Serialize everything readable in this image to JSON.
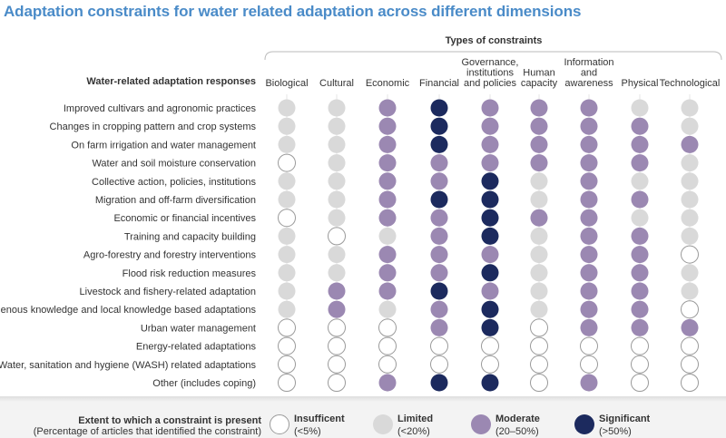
{
  "title": "Adaptation constraints for water related adaptation across different dimensions",
  "chart_data": {
    "type": "table",
    "column_group_label": "Types of constraints",
    "row_header": "Water-related adaptation responses",
    "columns": [
      "Biological",
      "Cultural",
      "Economic",
      "Financial",
      "Governance, institutions and policies",
      "Human capacity",
      "Information and awareness",
      "Physical",
      "Technological"
    ],
    "column_label_lines": [
      [
        "Biological"
      ],
      [
        "Cultural"
      ],
      [
        "Economic"
      ],
      [
        "Financial"
      ],
      [
        "Governance,",
        "institutions",
        "and policies"
      ],
      [
        "Human",
        "capacity"
      ],
      [
        "Information",
        "and",
        "awareness"
      ],
      [
        "Physical"
      ],
      [
        "Technological"
      ]
    ],
    "rows": [
      "Improved cultivars and agronomic practices",
      "Changes in cropping pattern and crop systems",
      "On farm irrigation and water management",
      "Water and soil moisture conservation",
      "Collective action, policies, institutions",
      "Migration and off-farm diversification",
      "Economic or financial incentives",
      "Training and capacity building",
      "Agro-forestry and forestry interventions",
      "Flood risk reduction measures",
      "Livestock and fishery-related adaptation",
      "Indigenous knowledge and local knowledge based adaptations",
      "Urban water management",
      "Energy-related adaptations",
      "Water, sanitation and hygiene (WASH) related adaptations",
      "Other (includes coping)"
    ],
    "levels": [
      {
        "key": "insufficient",
        "name": "Insufficent",
        "range": "(<5%)",
        "color": "#ffffff"
      },
      {
        "key": "limited",
        "name": "Limited",
        "range": "(<20%)",
        "color": "#d9d9d9"
      },
      {
        "key": "moderate",
        "name": "Moderate",
        "range": "(20–50%)",
        "color": "#9b88b2"
      },
      {
        "key": "significant",
        "name": "Significant",
        "range": "(>50%)",
        "color": "#1c2a5e"
      }
    ],
    "values": [
      [
        "limited",
        "limited",
        "moderate",
        "significant",
        "moderate",
        "moderate",
        "moderate",
        "limited",
        "limited"
      ],
      [
        "limited",
        "limited",
        "moderate",
        "significant",
        "moderate",
        "moderate",
        "moderate",
        "moderate",
        "limited"
      ],
      [
        "limited",
        "limited",
        "moderate",
        "significant",
        "moderate",
        "moderate",
        "moderate",
        "moderate",
        "moderate"
      ],
      [
        "insufficient",
        "limited",
        "moderate",
        "moderate",
        "moderate",
        "moderate",
        "moderate",
        "moderate",
        "limited"
      ],
      [
        "limited",
        "limited",
        "moderate",
        "moderate",
        "significant",
        "limited",
        "moderate",
        "limited",
        "limited"
      ],
      [
        "limited",
        "limited",
        "moderate",
        "significant",
        "significant",
        "limited",
        "moderate",
        "moderate",
        "limited"
      ],
      [
        "insufficient",
        "limited",
        "moderate",
        "moderate",
        "significant",
        "moderate",
        "moderate",
        "limited",
        "limited"
      ],
      [
        "limited",
        "insufficient",
        "limited",
        "moderate",
        "significant",
        "limited",
        "moderate",
        "moderate",
        "limited"
      ],
      [
        "limited",
        "limited",
        "moderate",
        "moderate",
        "moderate",
        "limited",
        "moderate",
        "moderate",
        "insufficient"
      ],
      [
        "limited",
        "limited",
        "moderate",
        "moderate",
        "significant",
        "limited",
        "moderate",
        "moderate",
        "limited"
      ],
      [
        "limited",
        "moderate",
        "moderate",
        "significant",
        "moderate",
        "limited",
        "moderate",
        "moderate",
        "limited"
      ],
      [
        "limited",
        "moderate",
        "limited",
        "moderate",
        "significant",
        "limited",
        "moderate",
        "moderate",
        "insufficient"
      ],
      [
        "insufficient",
        "insufficient",
        "insufficient",
        "moderate",
        "significant",
        "insufficient",
        "moderate",
        "moderate",
        "moderate"
      ],
      [
        "insufficient",
        "insufficient",
        "insufficient",
        "insufficient",
        "insufficient",
        "insufficient",
        "insufficient",
        "insufficient",
        "insufficient"
      ],
      [
        "insufficient",
        "insufficient",
        "insufficient",
        "insufficient",
        "insufficient",
        "insufficient",
        "insufficient",
        "insufficient",
        "insufficient"
      ],
      [
        "insufficient",
        "insufficient",
        "moderate",
        "significant",
        "significant",
        "insufficient",
        "moderate",
        "insufficient",
        "insufficient"
      ]
    ]
  },
  "legend": {
    "title": "Extent to which a constraint is present",
    "subtitle": "(Percentage of articles that identified the constraint)"
  }
}
